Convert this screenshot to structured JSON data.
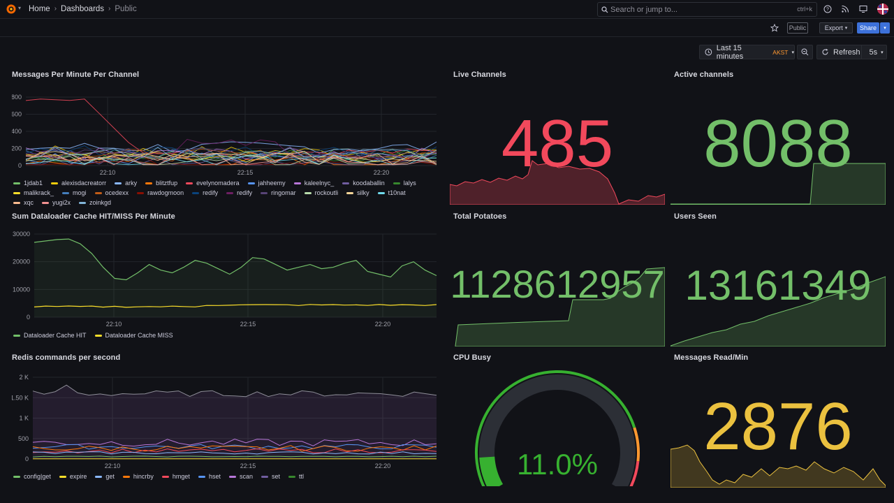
{
  "breadcrumb": {
    "home": "Home",
    "dashboards": "Dashboards",
    "current": "Public"
  },
  "search": {
    "placeholder": "Search or jump to...",
    "shortcut": "ctrl+k"
  },
  "toolbar": {
    "public_badge": "Public",
    "export_label": "Export",
    "share_label": "Share"
  },
  "timepicker": {
    "range": "Last 15 minutes",
    "tz": "AKST",
    "refresh_label": "Refresh",
    "interval": "5s"
  },
  "panels": {
    "mpm": {
      "title": "Messages Per Minute Per Channel"
    },
    "cache": {
      "title": "Sum Dataloader Cache HIT/MISS Per Minute"
    },
    "redis": {
      "title": "Redis commands per second"
    },
    "live": {
      "title": "Live Channels",
      "value": "485",
      "color": "#f2495c"
    },
    "active": {
      "title": "Active channels",
      "value": "8088",
      "color": "#73bf69"
    },
    "potatoes": {
      "title": "Total Potatoes",
      "value": "1128612957",
      "color": "#73bf69"
    },
    "users": {
      "title": "Users Seen",
      "value": "13161349",
      "color": "#73bf69"
    },
    "cpu": {
      "title": "CPU Busy",
      "value": "11.0%",
      "color": "#37b130",
      "fraction": 0.11
    },
    "read": {
      "title": "Messages Read/Min",
      "value": "2876",
      "color": "#ebc13f"
    }
  },
  "chart_data": [
    {
      "type": "line",
      "title": "Messages Per Minute Per Channel",
      "x": [
        "22:10",
        "22:15",
        "22:20"
      ],
      "ylim": [
        0,
        800
      ],
      "yticks": [
        "800",
        "600",
        "400",
        "200",
        "0"
      ],
      "series": [
        {
          "name": "1jdab1",
          "color": "#73bf69"
        },
        {
          "name": "alexisdacreatorr",
          "color": "#f2cc0c"
        },
        {
          "name": "arky",
          "color": "#8ab8ff"
        },
        {
          "name": "blitztfup",
          "color": "#ff780a"
        },
        {
          "name": "evelynomadera",
          "color": "#f2495c"
        },
        {
          "name": "jahheemy",
          "color": "#5794f2"
        },
        {
          "name": "kaleelnyc_",
          "color": "#b877d9"
        },
        {
          "name": "koodaballin",
          "color": "#705da0"
        },
        {
          "name": "lalys",
          "color": "#37872d"
        },
        {
          "name": "malikrack_",
          "color": "#fade2a"
        },
        {
          "name": "mogi",
          "color": "#447ebc"
        },
        {
          "name": "ocedexx",
          "color": "#c15c17"
        },
        {
          "name": "rawdogmoon",
          "color": "#890f02"
        },
        {
          "name": "redify",
          "color": "#0a437c"
        },
        {
          "name": "redify",
          "color": "#6d1f62"
        },
        {
          "name": "ringomar",
          "color": "#584477"
        },
        {
          "name": "rockoutli",
          "color": "#b7dbab"
        },
        {
          "name": "silky",
          "color": "#f4d598"
        },
        {
          "name": "t10nat",
          "color": "#70dbed"
        },
        {
          "name": "xqc",
          "color": "#f9ba8f"
        },
        {
          "name": "yugi2x",
          "color": "#f29191"
        },
        {
          "name": "zoinkgd",
          "color": "#82b5d8"
        }
      ]
    },
    {
      "type": "line",
      "title": "Sum Dataloader Cache HIT/MISS Per Minute",
      "x": [
        "22:10",
        "22:15",
        "22:20"
      ],
      "ylim": [
        0,
        30000
      ],
      "yticks": [
        "30000",
        "20000",
        "10000",
        "0"
      ],
      "series": [
        {
          "name": "Dataloader Cache HIT",
          "color": "#73bf69"
        },
        {
          "name": "Dataloader Cache MISS",
          "color": "#fade2a"
        }
      ]
    },
    {
      "type": "line",
      "title": "Redis commands per second",
      "x": [
        "22:10",
        "22:15",
        "22:20"
      ],
      "ylim": [
        0,
        2000
      ],
      "yticks": [
        "2 K",
        "1.50 K",
        "1 K",
        "500",
        "0"
      ],
      "series": [
        {
          "name": "config|get",
          "color": "#73bf69"
        },
        {
          "name": "expire",
          "color": "#fade2a"
        },
        {
          "name": "get",
          "color": "#8ab8ff"
        },
        {
          "name": "hincrby",
          "color": "#ff780a"
        },
        {
          "name": "hmget",
          "color": "#f2495c"
        },
        {
          "name": "hset",
          "color": "#5794f2"
        },
        {
          "name": "scan",
          "color": "#b877d9"
        },
        {
          "name": "set",
          "color": "#705da0"
        },
        {
          "name": "ttl",
          "color": "#37872d"
        }
      ]
    }
  ]
}
